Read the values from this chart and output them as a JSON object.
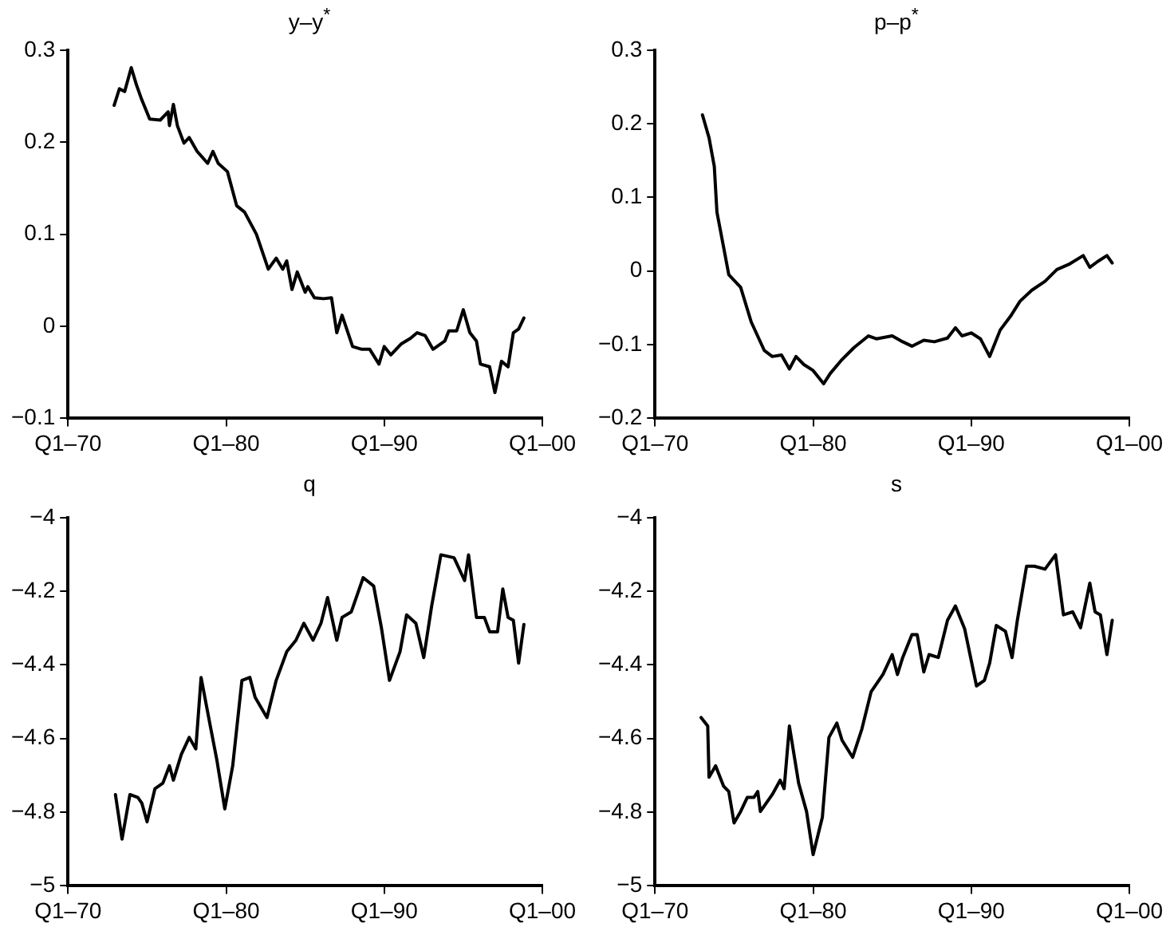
{
  "chart_data": [
    {
      "type": "line",
      "title": "y–y$^{*}$",
      "xlim": [
        "1970-01",
        "2000-01"
      ],
      "xticks": [
        {
          "value": "1970-01",
          "label": "Q1–70"
        },
        {
          "value": "1980-01",
          "label": "Q1–80"
        },
        {
          "value": "1990-01",
          "label": "Q1–90"
        },
        {
          "value": "2000-01",
          "label": "Q1–00"
        }
      ],
      "ylim": [
        -0.1,
        0.3
      ],
      "yticks": [
        -0.1,
        0,
        0.1,
        0.2,
        0.3
      ],
      "grid": false,
      "legend": false,
      "marker": "none",
      "line_style": "solid",
      "series": [
        {
          "color": "#000000",
          "x": [
            "1972-12",
            "1973-04",
            "1973-08",
            "1974-01",
            "1974-05",
            "1974-09",
            "1975-03",
            "1975-11",
            "1976-05",
            "1976-06",
            "1976-09",
            "1976-12",
            "1977-05",
            "1977-09",
            "1978-03",
            "1978-11",
            "1979-03",
            "1979-07",
            "1980-02",
            "1980-09",
            "1981-03",
            "1981-12",
            "1982-09",
            "1983-03",
            "1983-08",
            "1983-11",
            "1984-03",
            "1984-07",
            "1985-01",
            "1985-03",
            "1985-08",
            "1986-03",
            "1986-09",
            "1987-01",
            "1987-05",
            "1988-01",
            "1988-08",
            "1989-02",
            "1989-09",
            "1990-01",
            "1990-06",
            "1991-02",
            "1991-09",
            "1992-02",
            "1992-08",
            "1993-02",
            "1993-11",
            "1994-02",
            "1994-08",
            "1995-01",
            "1995-06",
            "1995-11",
            "1996-02",
            "1996-09",
            "1997-01",
            "1997-06",
            "1997-11",
            "1998-03",
            "1998-07",
            "1998-11"
          ],
          "values": [
            0.24,
            0.258,
            0.255,
            0.281,
            0.262,
            0.246,
            0.225,
            0.224,
            0.233,
            0.218,
            0.241,
            0.218,
            0.199,
            0.205,
            0.19,
            0.177,
            0.19,
            0.177,
            0.168,
            0.131,
            0.124,
            0.1,
            0.062,
            0.074,
            0.062,
            0.071,
            0.04,
            0.059,
            0.037,
            0.043,
            0.031,
            0.03,
            0.031,
            -0.007,
            0.012,
            -0.022,
            -0.025,
            -0.025,
            -0.041,
            -0.022,
            -0.031,
            -0.019,
            -0.013,
            -0.007,
            -0.01,
            -0.025,
            -0.016,
            -0.005,
            -0.005,
            0.018,
            -0.007,
            -0.016,
            -0.041,
            -0.044,
            -0.072,
            -0.038,
            -0.044,
            -0.007,
            -0.003,
            0.009
          ]
        }
      ]
    },
    {
      "type": "line",
      "title": "p–p$^{*}$",
      "xlim": [
        "1970-01",
        "2000-01"
      ],
      "xticks": [
        {
          "value": "1970-01",
          "label": "Q1–70"
        },
        {
          "value": "1980-01",
          "label": "Q1–80"
        },
        {
          "value": "1990-01",
          "label": "Q1–90"
        },
        {
          "value": "2000-01",
          "label": "Q1–00"
        }
      ],
      "ylim": [
        -0.2,
        0.3
      ],
      "yticks": [
        -0.2,
        -0.1,
        0,
        0.1,
        0.2,
        0.3
      ],
      "grid": false,
      "legend": false,
      "marker": "none",
      "line_style": "solid",
      "series": [
        {
          "color": "#000000",
          "x": [
            "1973-01",
            "1973-06",
            "1973-10",
            "1973-12",
            "1974-05",
            "1974-09",
            "1975-06",
            "1976-02",
            "1976-12",
            "1977-06",
            "1978-01",
            "1978-07",
            "1978-12",
            "1979-06",
            "1980-01",
            "1980-09",
            "1981-02",
            "1981-11",
            "1982-08",
            "1983-07",
            "1984-01",
            "1985-01",
            "1985-09",
            "1986-04",
            "1987-01",
            "1987-09",
            "1988-07",
            "1989-01",
            "1989-06",
            "1990-01",
            "1990-08",
            "1991-03",
            "1991-11",
            "1992-07",
            "1993-02",
            "1993-11",
            "1994-09",
            "1995-06",
            "1996-03",
            "1997-02",
            "1997-07",
            "1998-01",
            "1998-08",
            "1998-12"
          ],
          "values": [
            0.212,
            0.181,
            0.142,
            0.08,
            0.033,
            -0.005,
            -0.022,
            -0.069,
            -0.108,
            -0.116,
            -0.114,
            -0.133,
            -0.116,
            -0.127,
            -0.135,
            -0.153,
            -0.139,
            -0.12,
            -0.104,
            -0.088,
            -0.092,
            -0.088,
            -0.096,
            -0.102,
            -0.094,
            -0.096,
            -0.091,
            -0.077,
            -0.088,
            -0.084,
            -0.092,
            -0.116,
            -0.08,
            -0.061,
            -0.041,
            -0.026,
            -0.014,
            0.002,
            0.009,
            0.021,
            0.005,
            0.013,
            0.021,
            0.011
          ]
        }
      ]
    },
    {
      "type": "line",
      "title": "q",
      "xlim": [
        "1970-01",
        "2000-01"
      ],
      "xticks": [
        {
          "value": "1970-01",
          "label": "Q1–70"
        },
        {
          "value": "1980-01",
          "label": "Q1–80"
        },
        {
          "value": "1990-01",
          "label": "Q1–90"
        },
        {
          "value": "2000-01",
          "label": "Q1–00"
        }
      ],
      "ylim": [
        -5,
        -4
      ],
      "yticks": [
        -5,
        -4.8,
        -4.6,
        -4.4,
        -4.2,
        -4
      ],
      "grid": false,
      "legend": false,
      "marker": "none",
      "line_style": "solid",
      "series": [
        {
          "color": "#000000",
          "x": [
            "1973-01",
            "1973-06",
            "1973-12",
            "1974-06",
            "1974-09",
            "1975-01",
            "1975-07",
            "1976-01",
            "1976-06",
            "1976-09",
            "1977-03",
            "1977-09",
            "1978-02",
            "1978-06",
            "1979-01",
            "1979-06",
            "1979-12",
            "1980-06",
            "1981-01",
            "1981-07",
            "1981-11",
            "1982-08",
            "1983-03",
            "1983-11",
            "1984-06",
            "1984-12",
            "1985-07",
            "1986-01",
            "1986-06",
            "1987-01",
            "1987-05",
            "1987-12",
            "1988-09",
            "1989-05",
            "1989-11",
            "1990-05",
            "1991-01",
            "1991-06",
            "1992-01",
            "1992-07",
            "1993-01",
            "1993-08",
            "1994-06",
            "1995-02",
            "1995-05",
            "1995-11",
            "1996-05",
            "1996-09",
            "1997-03",
            "1997-07",
            "1997-11",
            "1998-03",
            "1998-07",
            "1998-11"
          ],
          "values": [
            -4.752,
            -4.873,
            -4.752,
            -4.76,
            -4.775,
            -4.826,
            -4.736,
            -4.721,
            -4.674,
            -4.713,
            -4.643,
            -4.597,
            -4.628,
            -4.434,
            -4.566,
            -4.659,
            -4.791,
            -4.674,
            -4.442,
            -4.434,
            -4.488,
            -4.543,
            -4.442,
            -4.364,
            -4.333,
            -4.287,
            -4.333,
            -4.287,
            -4.217,
            -4.333,
            -4.271,
            -4.256,
            -4.163,
            -4.186,
            -4.302,
            -4.442,
            -4.364,
            -4.264,
            -4.287,
            -4.38,
            -4.24,
            -4.101,
            -4.109,
            -4.171,
            -4.101,
            -4.271,
            -4.271,
            -4.31,
            -4.31,
            -4.194,
            -4.271,
            -4.279,
            -4.395,
            -4.29
          ]
        }
      ]
    },
    {
      "type": "line",
      "title": "s",
      "xlim": [
        "1970-01",
        "2000-01"
      ],
      "xticks": [
        {
          "value": "1970-01",
          "label": "Q1–70"
        },
        {
          "value": "1980-01",
          "label": "Q1–80"
        },
        {
          "value": "1990-01",
          "label": "Q1–90"
        },
        {
          "value": "2000-01",
          "label": "Q1–00"
        }
      ],
      "ylim": [
        -5,
        -4
      ],
      "yticks": [
        -5,
        -4.8,
        -4.6,
        -4.4,
        -4.2,
        -4
      ],
      "grid": false,
      "legend": false,
      "marker": "none",
      "line_style": "solid",
      "series": [
        {
          "color": "#000000",
          "x": [
            "1972-12",
            "1973-05",
            "1973-06",
            "1973-11",
            "1974-05",
            "1974-09",
            "1975-01",
            "1975-06",
            "1975-11",
            "1976-04",
            "1976-07",
            "1976-09",
            "1977-06",
            "1977-12",
            "1978-03",
            "1978-07",
            "1979-02",
            "1979-08",
            "1980-01",
            "1980-08",
            "1981-01",
            "1981-07",
            "1981-11",
            "1982-07",
            "1983-02",
            "1983-09",
            "1984-06",
            "1985-01",
            "1985-05",
            "1985-09",
            "1986-04",
            "1986-08",
            "1987-01",
            "1987-05",
            "1987-12",
            "1988-07",
            "1989-01",
            "1989-08",
            "1990-05",
            "1990-11",
            "1991-03",
            "1991-08",
            "1992-03",
            "1992-08",
            "1992-12",
            "1993-07",
            "1994-01",
            "1994-09",
            "1995-05",
            "1995-11",
            "1996-06",
            "1996-12",
            "1997-07",
            "1997-11",
            "1998-03",
            "1998-08",
            "1998-12"
          ],
          "values": [
            -4.543,
            -4.566,
            -4.705,
            -4.674,
            -4.729,
            -4.744,
            -4.829,
            -4.798,
            -4.76,
            -4.76,
            -4.744,
            -4.798,
            -4.752,
            -4.713,
            -4.736,
            -4.566,
            -4.721,
            -4.798,
            -4.915,
            -4.814,
            -4.597,
            -4.558,
            -4.605,
            -4.651,
            -4.574,
            -4.473,
            -4.426,
            -4.372,
            -4.426,
            -4.38,
            -4.318,
            -4.318,
            -4.419,
            -4.372,
            -4.38,
            -4.279,
            -4.24,
            -4.302,
            -4.457,
            -4.442,
            -4.395,
            -4.293,
            -4.309,
            -4.38,
            -4.279,
            -4.132,
            -4.132,
            -4.14,
            -4.101,
            -4.264,
            -4.256,
            -4.299,
            -4.178,
            -4.256,
            -4.264,
            -4.372,
            -4.279
          ]
        }
      ]
    }
  ]
}
